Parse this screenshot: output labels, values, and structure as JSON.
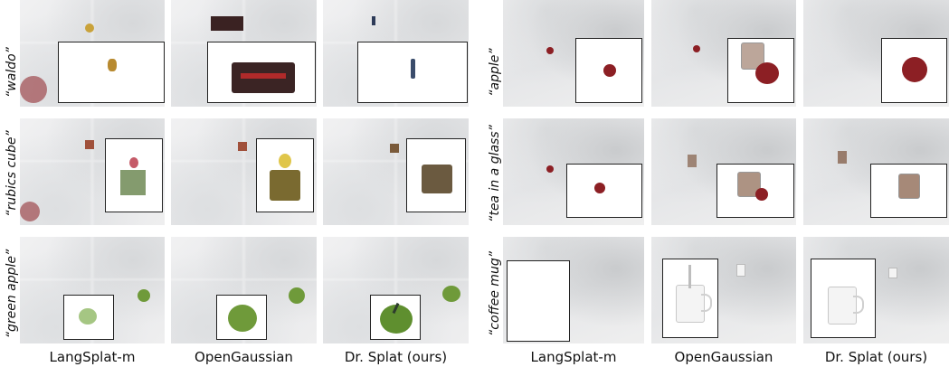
{
  "methods": [
    "LangSplat-m",
    "OpenGaussian",
    "Dr. Splat (ours)"
  ],
  "left_queries": [
    "waldo",
    "rubics cube",
    "green apple"
  ],
  "right_queries": [
    "apple",
    "tea in a glass",
    "coffee mug"
  ],
  "colors": {
    "apple_red": "#8c1f24",
    "green_apple": "#6f9a3a",
    "tea": "#6a3a1e",
    "mug": "#f4f4f4",
    "inset_border": "#222222"
  }
}
